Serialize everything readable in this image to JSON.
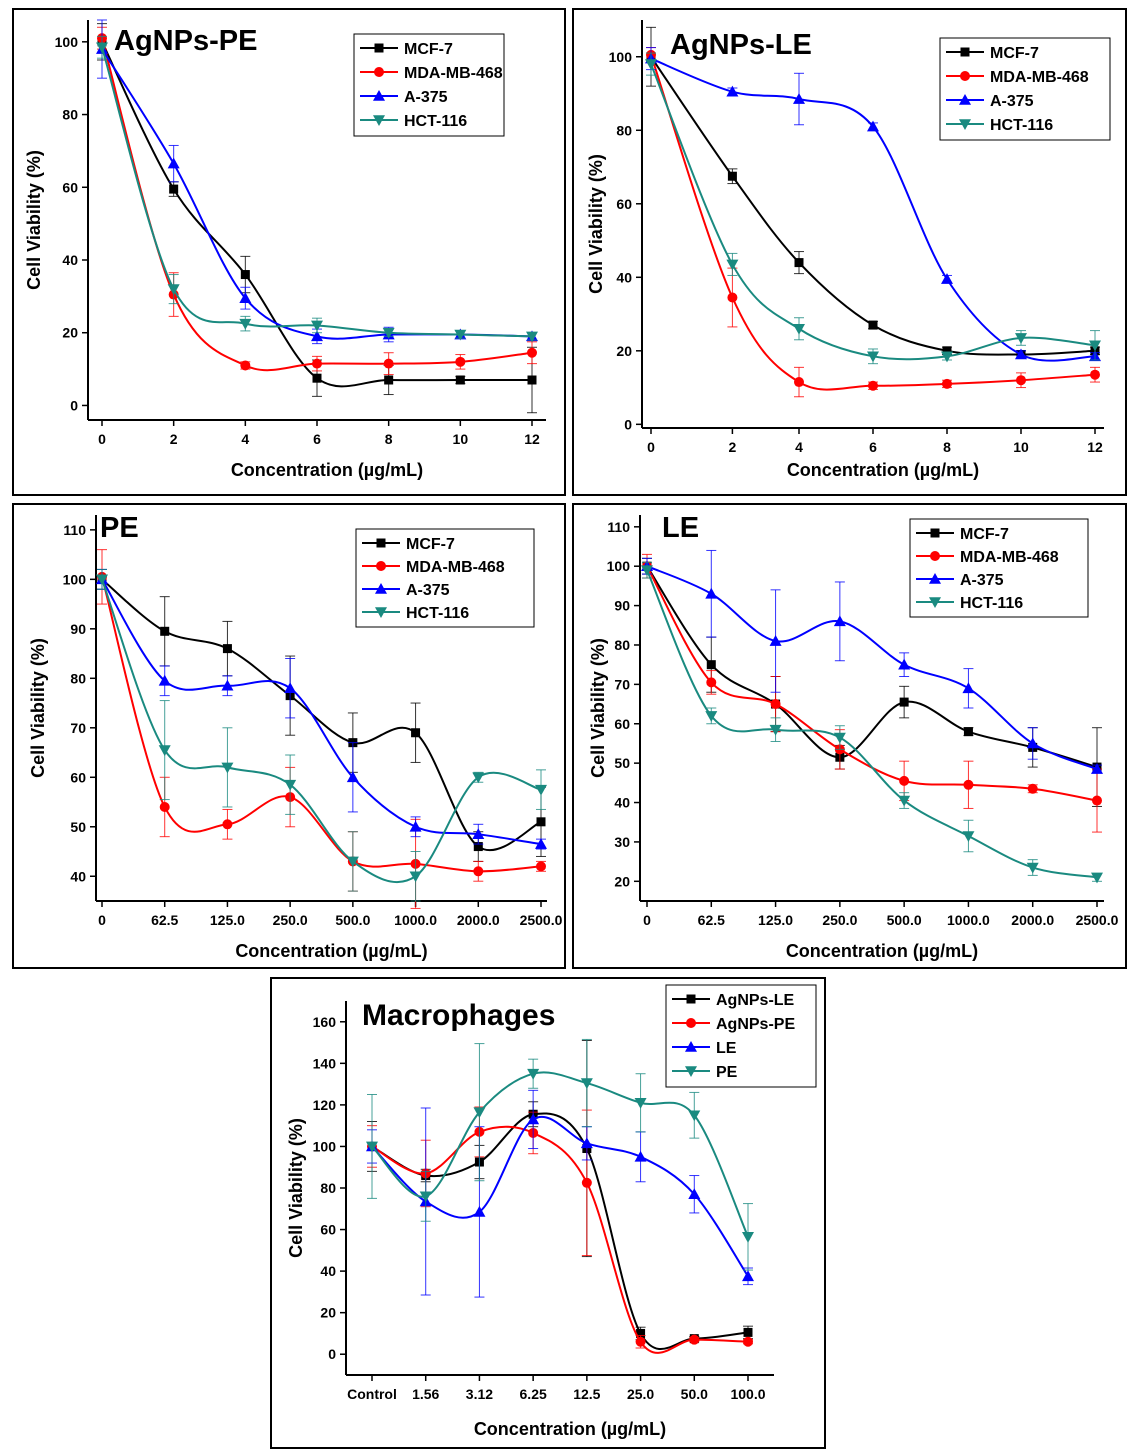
{
  "panels": [
    {
      "id": "p1",
      "chart_data": {
        "type": "line",
        "title": "AgNPs-PE",
        "xlabel": "Concentration (µg/mL)",
        "ylabel": "Cell Viability (%)",
        "x": [
          0,
          2,
          4,
          6,
          8,
          10,
          12
        ],
        "x_tick_labels": [
          "0",
          "2",
          "4",
          "6",
          "8",
          "10",
          "12"
        ],
        "y_ticks": [
          0,
          20,
          40,
          60,
          80,
          100
        ],
        "ylim": [
          -4,
          106
        ],
        "legend_position": "top-right",
        "series": [
          {
            "name": "MCF-7",
            "color": "#000000",
            "marker": "square",
            "values": [
              100,
              59.5,
              36,
              7.5,
              7,
              7,
              7
            ],
            "errors": [
              5,
              2,
              5,
              5,
              4,
              1,
              9
            ]
          },
          {
            "name": "MDA-MB-468",
            "color": "#ff0000",
            "marker": "circle",
            "values": [
              101,
              30.5,
              11,
              11.5,
              11.5,
              12,
              14.5
            ],
            "errors": [
              3,
              6,
              1,
              2,
              3,
              2,
              3
            ]
          },
          {
            "name": "A-375",
            "color": "#0000ff",
            "marker": "triangle-up",
            "values": [
              98,
              66.5,
              29.5,
              19,
              19.5,
              19.5,
              19
            ],
            "errors": [
              8,
              5,
              3,
              2,
              2,
              1,
              1
            ]
          },
          {
            "name": "HCT-116",
            "color": "#1a8a80",
            "marker": "triangle-down",
            "values": [
              98.5,
              32,
              22.5,
              22,
              20,
              19.5,
              19
            ],
            "errors": [
              3,
              4,
              2,
              2,
              1,
              1,
              1
            ]
          }
        ]
      }
    },
    {
      "id": "p2",
      "chart_data": {
        "type": "line",
        "title": "AgNPs-LE",
        "xlabel": "Concentration (µg/mL)",
        "ylabel": "Cell Viability (%)",
        "x": [
          0,
          2.2,
          4,
          6,
          8,
          10,
          12
        ],
        "x_tick_labels": [
          "0",
          "2",
          "4",
          "6",
          "8",
          "10",
          "12"
        ],
        "y_ticks": [
          0,
          20,
          40,
          60,
          80,
          100
        ],
        "ylim": [
          -1,
          110
        ],
        "legend_position": "top-right",
        "series": [
          {
            "name": "MCF-7",
            "color": "#000000",
            "marker": "square",
            "values": [
              100,
              67.5,
              44,
              27,
              20,
              19,
              20
            ],
            "errors": [
              8,
              2,
              3,
              1,
              1,
              1,
              1
            ]
          },
          {
            "name": "MDA-MB-468",
            "color": "#ff0000",
            "marker": "circle",
            "values": [
              100.5,
              34.5,
              11.5,
              10.5,
              11,
              12,
              13.5
            ],
            "errors": [
              2,
              8,
              4,
              1,
              1,
              2,
              2
            ]
          },
          {
            "name": "A-375",
            "color": "#0000ff",
            "marker": "triangle-up",
            "values": [
              99.5,
              90.5,
              88.5,
              81,
              39.5,
              19,
              18.5
            ],
            "errors": [
              3,
              1,
              7,
              1,
              1,
              1,
              1
            ]
          },
          {
            "name": "HCT-116",
            "color": "#1a8a80",
            "marker": "triangle-down",
            "values": [
              98,
              43.5,
              26,
              18.5,
              18.5,
              23.5,
              21.5
            ],
            "errors": [
              3,
              3,
              3,
              2,
              1,
              2,
              4
            ]
          }
        ]
      }
    },
    {
      "id": "p3",
      "chart_data": {
        "type": "line",
        "title": "PE",
        "xlabel": "Concentration (µg/mL)",
        "ylabel": "Cell Viability (%)",
        "x": [
          0,
          1,
          2,
          3,
          4,
          5,
          6,
          7
        ],
        "x_tick_labels": [
          "0",
          "62.5",
          "125.0",
          "250.0",
          "500.0",
          "1000.0",
          "2000.0",
          "2500.0"
        ],
        "y_ticks": [
          40,
          50,
          60,
          70,
          80,
          90,
          100,
          110
        ],
        "ylim": [
          35,
          113
        ],
        "legend_position": "top-right",
        "series": [
          {
            "name": "MCF-7",
            "color": "#000000",
            "marker": "square",
            "values": [
              100,
              89.5,
              86,
              76.5,
              67,
              69,
              46,
              51
            ],
            "errors": [
              2,
              7,
              5.5,
              8,
              6,
              6,
              3,
              7
            ]
          },
          {
            "name": "MDA-MB-468",
            "color": "#ff0000",
            "marker": "circle",
            "values": [
              100.5,
              54,
              50.5,
              56,
              43,
              42.5,
              41,
              42
            ],
            "errors": [
              5.5,
              6,
              3,
              6,
              6,
              9,
              2,
              1
            ]
          },
          {
            "name": "A-375",
            "color": "#0000ff",
            "marker": "triangle-up",
            "values": [
              100,
              79.5,
              78.5,
              78,
              60,
              50,
              48.5,
              46.5
            ],
            "errors": [
              2,
              3,
              2,
              6,
              7,
              2,
              2,
              1
            ]
          },
          {
            "name": "HCT-116",
            "color": "#1a8a80",
            "marker": "triangle-down",
            "values": [
              100,
              65.5,
              62,
              58.5,
              43,
              40,
              60,
              57.5
            ],
            "errors": [
              2,
              10,
              8,
              6,
              6,
              5,
              1,
              4
            ]
          }
        ]
      }
    },
    {
      "id": "p4",
      "chart_data": {
        "type": "line",
        "title": "LE",
        "xlabel": "Concentration (µg/mL)",
        "ylabel": "Cell Viability (%)",
        "x": [
          0,
          1,
          2,
          3,
          4,
          5,
          6,
          7
        ],
        "x_tick_labels": [
          "0",
          "62.5",
          "125.0",
          "250.0",
          "500.0",
          "1000.0",
          "2000.0",
          "2500.0"
        ],
        "y_ticks": [
          20,
          30,
          40,
          50,
          60,
          70,
          80,
          90,
          100,
          110
        ],
        "ylim": [
          15,
          113
        ],
        "legend_position": "top-right",
        "series": [
          {
            "name": "MCF-7",
            "color": "#000000",
            "marker": "square",
            "values": [
              100,
              75,
              65,
              51.5,
              65.5,
              58,
              54,
              49
            ],
            "errors": [
              2,
              7,
              7,
              3,
              4,
              1,
              5,
              10
            ]
          },
          {
            "name": "MDA-MB-468",
            "color": "#ff0000",
            "marker": "circle",
            "values": [
              100,
              70.5,
              65,
              53.5,
              45.5,
              44.5,
              43.5,
              40.5
            ],
            "errors": [
              3,
              3,
              7,
              5,
              5,
              6,
              1,
              8
            ]
          },
          {
            "name": "A-375",
            "color": "#0000ff",
            "marker": "triangle-up",
            "values": [
              100,
              93,
              81,
              86,
              75,
              69,
              55,
              48.5
            ],
            "errors": [
              2,
              11,
              13,
              10,
              3,
              5,
              4,
              1
            ]
          },
          {
            "name": "HCT-116",
            "color": "#1a8a80",
            "marker": "triangle-down",
            "values": [
              99,
              62,
              58.5,
              56.5,
              40.5,
              31.5,
              23.5,
              21
            ],
            "errors": [
              2,
              2,
              3,
              3,
              2,
              4,
              2,
              1
            ]
          }
        ]
      }
    },
    {
      "id": "p5",
      "chart_data": {
        "type": "line",
        "title": "Macrophages",
        "xlabel": "Concentration (µg/mL)",
        "ylabel": "Cell Viability (%)",
        "x": [
          0,
          1,
          2,
          3,
          4,
          5,
          6,
          7
        ],
        "x_tick_labels": [
          "Control",
          "1.56",
          "3.12",
          "6.25",
          "12.5",
          "25.0",
          "50.0",
          "100.0"
        ],
        "y_ticks": [
          0,
          20,
          40,
          60,
          80,
          100,
          120,
          140,
          160
        ],
        "ylim": [
          -10,
          170
        ],
        "legend_position": "top-right",
        "series": [
          {
            "name": "AgNPs-LE",
            "color": "#000000",
            "marker": "square",
            "values": [
              100,
              86,
              92.5,
              115.5,
              99,
              10,
              7.5,
              10.5
            ],
            "errors": [
              12,
              3,
              8,
              6,
              52,
              3,
              1,
              3
            ]
          },
          {
            "name": "AgNPs-PE",
            "color": "#ff0000",
            "marker": "circle",
            "values": [
              100,
              87,
              107,
              106.5,
              82.5,
              6,
              7,
              6
            ],
            "errors": [
              10,
              16,
              12,
              10,
              35,
              3,
              1,
              1
            ]
          },
          {
            "name": "LE",
            "color": "#0000ff",
            "marker": "triangle-up",
            "values": [
              100,
              73.5,
              68.5,
              113,
              101.5,
              95,
              77,
              37.5
            ],
            "errors": [
              8,
              45,
              41,
              14,
              8,
              12,
              9,
              4
            ]
          },
          {
            "name": "PE",
            "color": "#1a8a80",
            "marker": "triangle-down",
            "values": [
              100,
              76,
              116.5,
              135,
              130.5,
              121,
              115,
              56.5
            ],
            "errors": [
              25,
              12,
              33,
              7,
              21,
              14,
              11,
              16
            ]
          }
        ]
      }
    }
  ]
}
